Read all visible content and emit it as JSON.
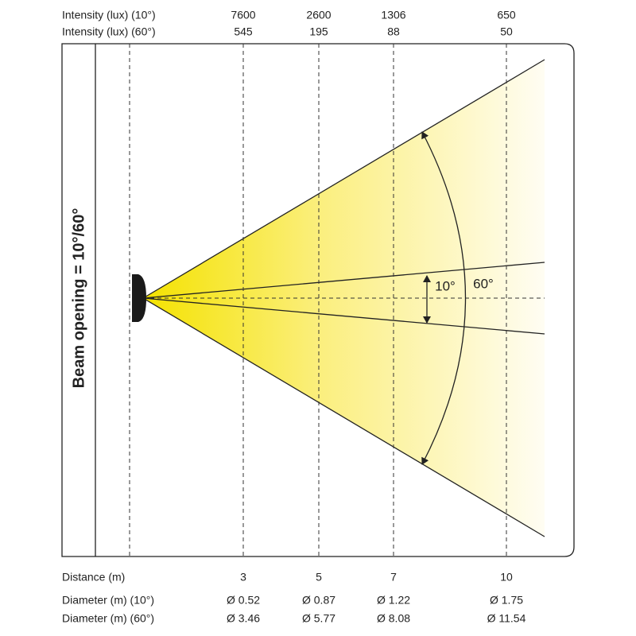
{
  "header": {
    "rows": [
      {
        "label": "Intensity (lux) (10°)",
        "values": [
          "7600",
          "2600",
          "1306",
          "650"
        ]
      },
      {
        "label": "Intensity (lux) (60°)",
        "values": [
          "545",
          "195",
          "88",
          "50"
        ]
      }
    ]
  },
  "diagram": {
    "side_label": "Beam opening = 10°/60°",
    "angle_inner": "10°",
    "angle_outer": "60°"
  },
  "footer": {
    "rows": [
      {
        "label": "Distance (m)",
        "values": [
          "3",
          "5",
          "7",
          "10"
        ]
      },
      {
        "label": "Diameter (m) (10°)",
        "values": [
          "Ø 0.52",
          "Ø 0.87",
          "Ø 1.22",
          "Ø 1.75"
        ]
      },
      {
        "label": "Diameter (m) (60°)",
        "values": [
          "Ø 3.46",
          "Ø 5.77",
          "Ø 8.08",
          "Ø 11.54"
        ]
      }
    ]
  }
}
